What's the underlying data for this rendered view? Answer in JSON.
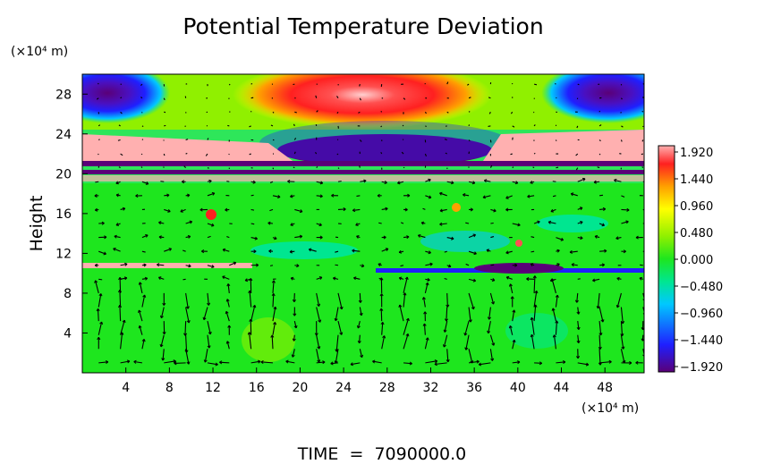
{
  "chart_data": {
    "type": "heatmap",
    "title": "Potential Temperature Deviation",
    "ylabel": "Height",
    "y_unit_label": "(×10⁴ m)",
    "x_unit_label": "(×10⁴ m)",
    "footer": "TIME  =  7090000.0",
    "xlim": [
      0,
      51.6
    ],
    "ylim": [
      0,
      30
    ],
    "x_ticks": [
      4,
      8,
      12,
      16,
      20,
      24,
      28,
      32,
      36,
      40,
      44,
      48
    ],
    "y_ticks": [
      4,
      8,
      12,
      16,
      20,
      24,
      28
    ],
    "colorbar_ticks": [
      "1.920",
      "1.440",
      "0.960",
      "0.480",
      "0.000",
      "−0.480",
      "−0.960",
      "−1.440",
      "−1.920"
    ],
    "colorbar_range": [
      -1.92,
      1.92
    ],
    "colormap": [
      "#5a0078",
      "#1f1fff",
      "#00c8ff",
      "#00e690",
      "#1ee61e",
      "#90f000",
      "#ffff00",
      "#ffa000",
      "#ff2020",
      "#ffb0b0"
    ],
    "overlay": "velocity vectors (arrows)"
  }
}
